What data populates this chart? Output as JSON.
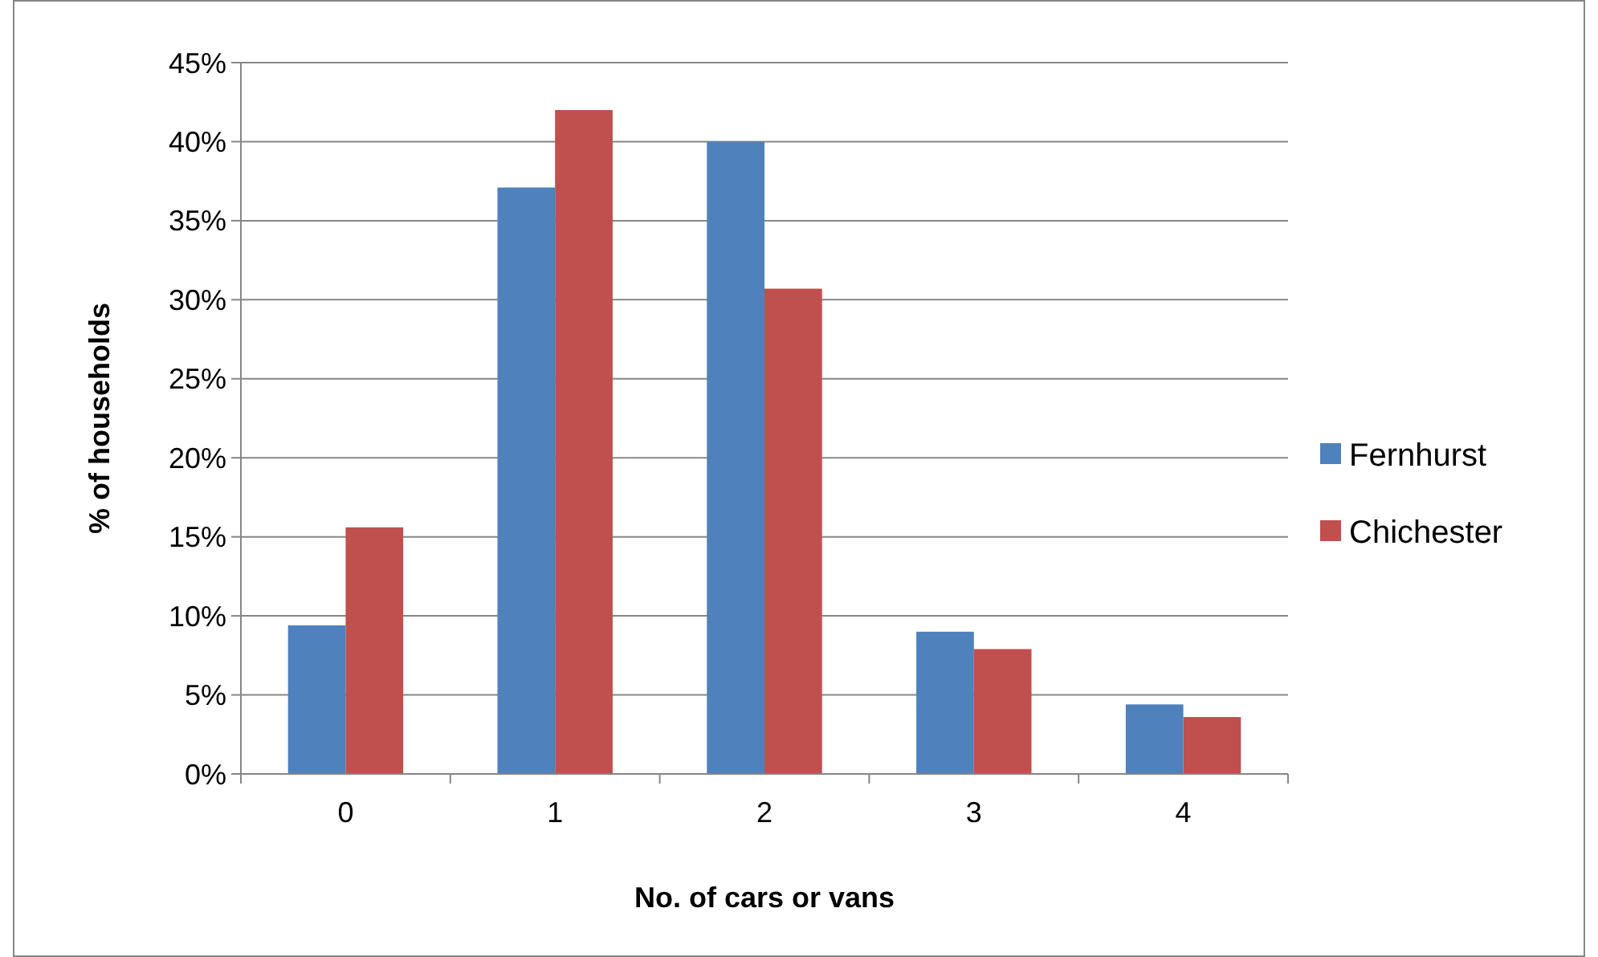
{
  "chart_data": {
    "type": "bar",
    "xlabel": "No. of cars or vans",
    "ylabel": "% of households",
    "categories": [
      "0",
      "1",
      "2",
      "3",
      "4"
    ],
    "series": [
      {
        "name": "Fernhurst",
        "color": "#4f81bd",
        "values": [
          9.4,
          37.1,
          40.0,
          9.0,
          4.4
        ]
      },
      {
        "name": "Chichester",
        "color": "#c0504d",
        "values": [
          15.6,
          42.0,
          30.7,
          7.9,
          3.6
        ]
      }
    ],
    "ylim": [
      0,
      45
    ],
    "yticks": [
      {
        "value": 0,
        "label": "0%"
      },
      {
        "value": 5,
        "label": "5%"
      },
      {
        "value": 10,
        "label": "10%"
      },
      {
        "value": 15,
        "label": "15%"
      },
      {
        "value": 20,
        "label": "20%"
      },
      {
        "value": 25,
        "label": "25%"
      },
      {
        "value": 30,
        "label": "30%"
      },
      {
        "value": 35,
        "label": "35%"
      },
      {
        "value": 40,
        "label": "40%"
      },
      {
        "value": 45,
        "label": "45%"
      }
    ],
    "grid": "y",
    "legend": "right"
  }
}
